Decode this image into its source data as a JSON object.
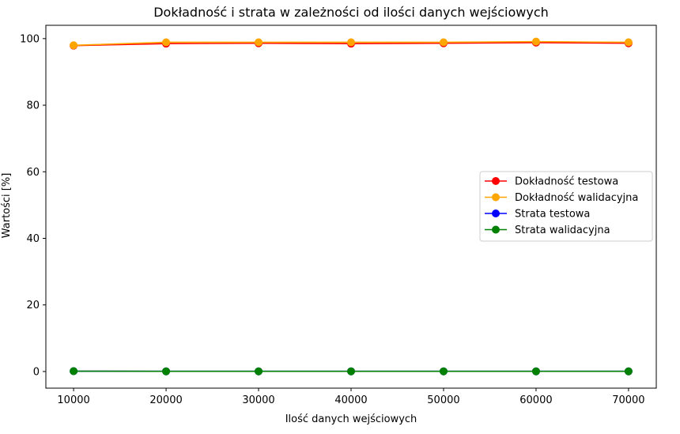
{
  "chart_data": {
    "type": "line",
    "title": "Dokładność i strata w zależności od ilości danych wejściowych",
    "xlabel": "Ilość danych wejściowych",
    "ylabel": "Wartości [%]",
    "xlim": [
      7000,
      73000
    ],
    "ylim": [
      -5,
      104
    ],
    "xticks": [
      10000,
      20000,
      30000,
      40000,
      50000,
      60000,
      70000
    ],
    "yticks": [
      0,
      20,
      40,
      60,
      80,
      100
    ],
    "x": [
      10000,
      20000,
      30000,
      40000,
      50000,
      60000,
      70000
    ],
    "grid": false,
    "legend_position": "center-right",
    "series": [
      {
        "name": "Dokładność testowa",
        "color": "#ff0000",
        "marker": "circle",
        "values": [
          97.9,
          98.5,
          98.6,
          98.5,
          98.6,
          98.8,
          98.6
        ]
      },
      {
        "name": "Dokładność walidacyjna",
        "color": "#ffa500",
        "marker": "circle",
        "values": [
          98.0,
          98.9,
          98.9,
          98.9,
          98.9,
          99.1,
          98.9
        ]
      },
      {
        "name": "Strata testowa",
        "color": "#0000ff",
        "marker": "circle",
        "values": [
          0.1,
          0.05,
          0.05,
          0.05,
          0.05,
          0.05,
          0.05
        ]
      },
      {
        "name": "Strata walidacyjna",
        "color": "#008000",
        "marker": "circle",
        "values": [
          0.1,
          0.05,
          0.05,
          0.05,
          0.05,
          0.05,
          0.05
        ]
      }
    ]
  }
}
